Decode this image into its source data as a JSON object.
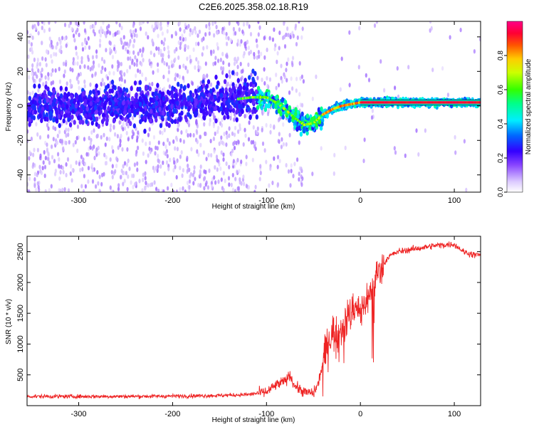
{
  "title": "C2E6.2025.358.02.18.R19",
  "chart_data": [
    {
      "type": "heatmap",
      "name": "spectrogram",
      "xlabel": "Height of straight line (km)",
      "ylabel": "Frequency (Hz)",
      "xlim": [
        -355,
        128
      ],
      "ylim": [
        -50,
        49
      ],
      "xticks": [
        -300,
        -200,
        -100,
        0,
        100
      ],
      "xtick_labels": [
        "-300",
        "-200",
        "-100",
        "0",
        "100"
      ],
      "yticks": [
        -40,
        -20,
        0,
        20,
        40
      ],
      "ytick_labels": [
        "-40",
        "-20",
        "0",
        "20",
        "40"
      ],
      "ridge": {
        "x": [
          -355,
          -300,
          -200,
          -130,
          -115,
          -100,
          -90,
          -80,
          -70,
          -60,
          -50,
          -40,
          -30,
          -20,
          -10,
          0,
          20,
          60,
          100,
          128
        ],
        "y": [
          0,
          0,
          1,
          4,
          5,
          5,
          2,
          -2,
          -7,
          -11,
          -10,
          -5,
          -2,
          0,
          1,
          2,
          2,
          2,
          2,
          2
        ]
      },
      "colorbar": {
        "label": "Normalized spectral amplitude",
        "range": [
          0,
          1
        ],
        "ticks": [
          0,
          0.2,
          0.4,
          0.6,
          0.8
        ],
        "tick_labels": [
          "0.0",
          "0.2",
          "0.4",
          "0.6",
          "0.8"
        ]
      }
    },
    {
      "type": "line",
      "name": "snr",
      "xlabel": "Height of straight line (km)",
      "ylabel": "SNR (10 * v/v)",
      "xlim": [
        -355,
        128
      ],
      "ylim": [
        0,
        2750
      ],
      "xticks": [
        -300,
        -200,
        -100,
        0,
        100
      ],
      "xtick_labels": [
        "-300",
        "-200",
        "-100",
        "0",
        "100"
      ],
      "yticks": [
        500,
        1000,
        1500,
        2000,
        2500
      ],
      "ytick_labels": [
        "500",
        "1000",
        "1500",
        "2000",
        "2500"
      ],
      "color": "#ee2222",
      "series": [
        {
          "name": "SNR",
          "x": [
            -355,
            -300,
            -250,
            -200,
            -150,
            -120,
            -100,
            -90,
            -80,
            -75,
            -70,
            -60,
            -50,
            -45,
            -40,
            -35,
            -30,
            -25,
            -20,
            -15,
            -10,
            -5,
            0,
            5,
            10,
            15,
            20,
            25,
            30,
            40,
            60,
            80,
            100,
            110,
            120,
            128
          ],
          "y": [
            150,
            150,
            150,
            155,
            165,
            180,
            220,
            330,
            400,
            500,
            320,
            220,
            200,
            350,
            700,
            1000,
            1200,
            1150,
            1300,
            1400,
            1500,
            1650,
            1500,
            1700,
            1800,
            2000,
            2200,
            2300,
            2420,
            2500,
            2550,
            2600,
            2620,
            2500,
            2450,
            2450
          ]
        }
      ]
    }
  ]
}
